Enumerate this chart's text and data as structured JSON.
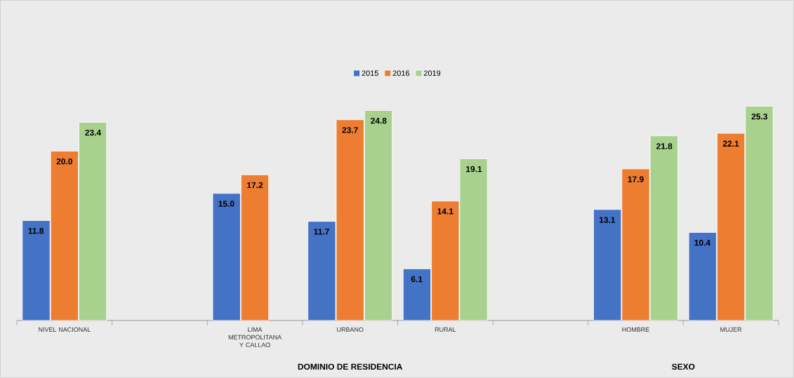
{
  "chart_data": {
    "type": "bar",
    "categories": [
      "NIVEL NACIONAL",
      null,
      "LIMA METROPOLITANA Y CALLAO",
      "URBANO",
      "RURAL",
      null,
      "HOMBRE",
      "MUJER"
    ],
    "series": [
      {
        "name": "2015",
        "color": "#4472c4",
        "values": [
          11.8,
          null,
          15.0,
          11.7,
          6.1,
          null,
          13.1,
          10.4
        ],
        "value_labels": [
          "11.8",
          null,
          "15.0",
          "11.7",
          "6.1",
          null,
          "13.1",
          "10.4"
        ]
      },
      {
        "name": "2016",
        "color": "#ed7d31",
        "values": [
          20.0,
          null,
          17.2,
          23.7,
          14.1,
          null,
          17.9,
          22.1
        ],
        "value_labels": [
          "20.0",
          null,
          "17.2",
          "23.7",
          "14.1",
          null,
          "17.9",
          "22.1"
        ]
      },
      {
        "name": "2019",
        "color": "#a9d18e",
        "values": [
          23.4,
          null,
          null,
          24.8,
          19.1,
          null,
          21.8,
          25.3
        ],
        "value_labels": [
          "23.4",
          null,
          null,
          "24.8",
          "19.1",
          null,
          "21.8",
          "25.3"
        ]
      }
    ],
    "tick_labels": "x",
    "legend": "top",
    "annotations": [
      "DOMINIO DE RESIDENCIA",
      "SEXO"
    ]
  }
}
